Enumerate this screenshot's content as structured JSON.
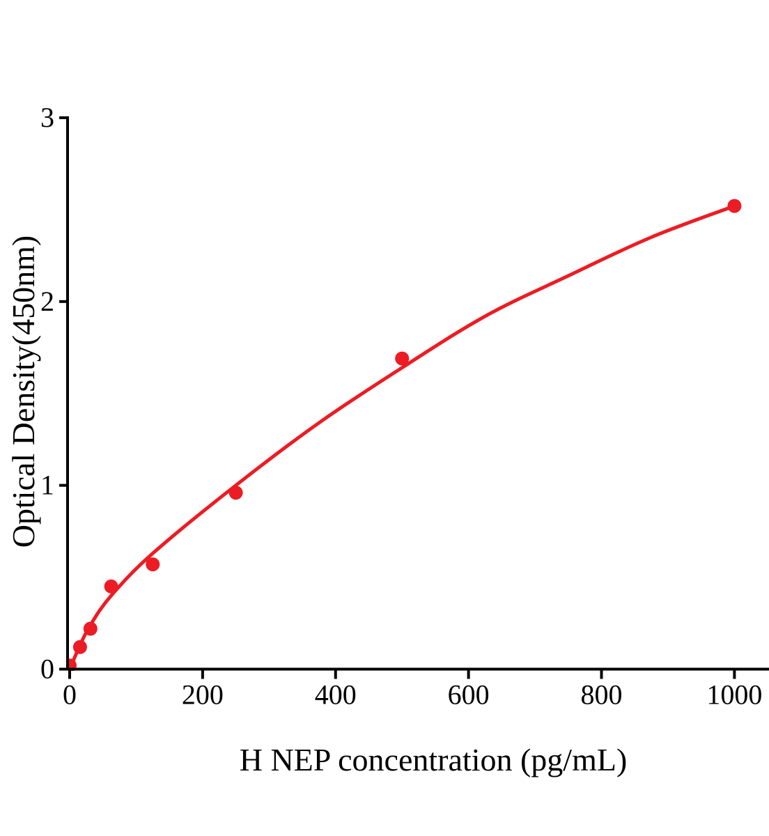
{
  "page": {
    "background_color": "#ffffff"
  },
  "chart_data": {
    "type": "scatter",
    "title": "",
    "xlabel": "H NEP concentration (pg/mL)",
    "ylabel": "Optical Density(450nm)",
    "xlim": [
      0,
      1052
    ],
    "ylim": [
      0,
      3
    ],
    "grid": false,
    "legend": null,
    "axis_color": "#000000",
    "point_color": "#ec1c24",
    "line_color": "#ec1c24",
    "x_ticks": [
      {
        "value": 0,
        "label": "0"
      },
      {
        "value": 200,
        "label": "200"
      },
      {
        "value": 400,
        "label": "400"
      },
      {
        "value": 600,
        "label": "600"
      },
      {
        "value": 800,
        "label": "800"
      },
      {
        "value": 1000,
        "label": "1000"
      }
    ],
    "y_ticks": [
      {
        "value": 0,
        "label": "0"
      },
      {
        "value": 1,
        "label": "1"
      },
      {
        "value": 2,
        "label": "2"
      },
      {
        "value": 3,
        "label": "3"
      }
    ],
    "series": [
      {
        "name": "standard-points",
        "type": "scatter",
        "x": [
          0,
          15.6,
          31.2,
          62.5,
          125,
          250,
          500,
          1000
        ],
        "y": [
          0.02,
          0.12,
          0.22,
          0.45,
          0.57,
          0.96,
          1.69,
          2.52
        ]
      },
      {
        "name": "fitted-curve",
        "type": "line",
        "x": [
          0,
          15.6,
          31.2,
          62.5,
          125,
          250,
          375,
          500,
          625,
          750,
          875,
          1000
        ],
        "y": [
          0,
          0.13,
          0.24,
          0.4,
          0.63,
          1.0,
          1.34,
          1.64,
          1.92,
          2.14,
          2.35,
          2.52
        ]
      }
    ]
  }
}
